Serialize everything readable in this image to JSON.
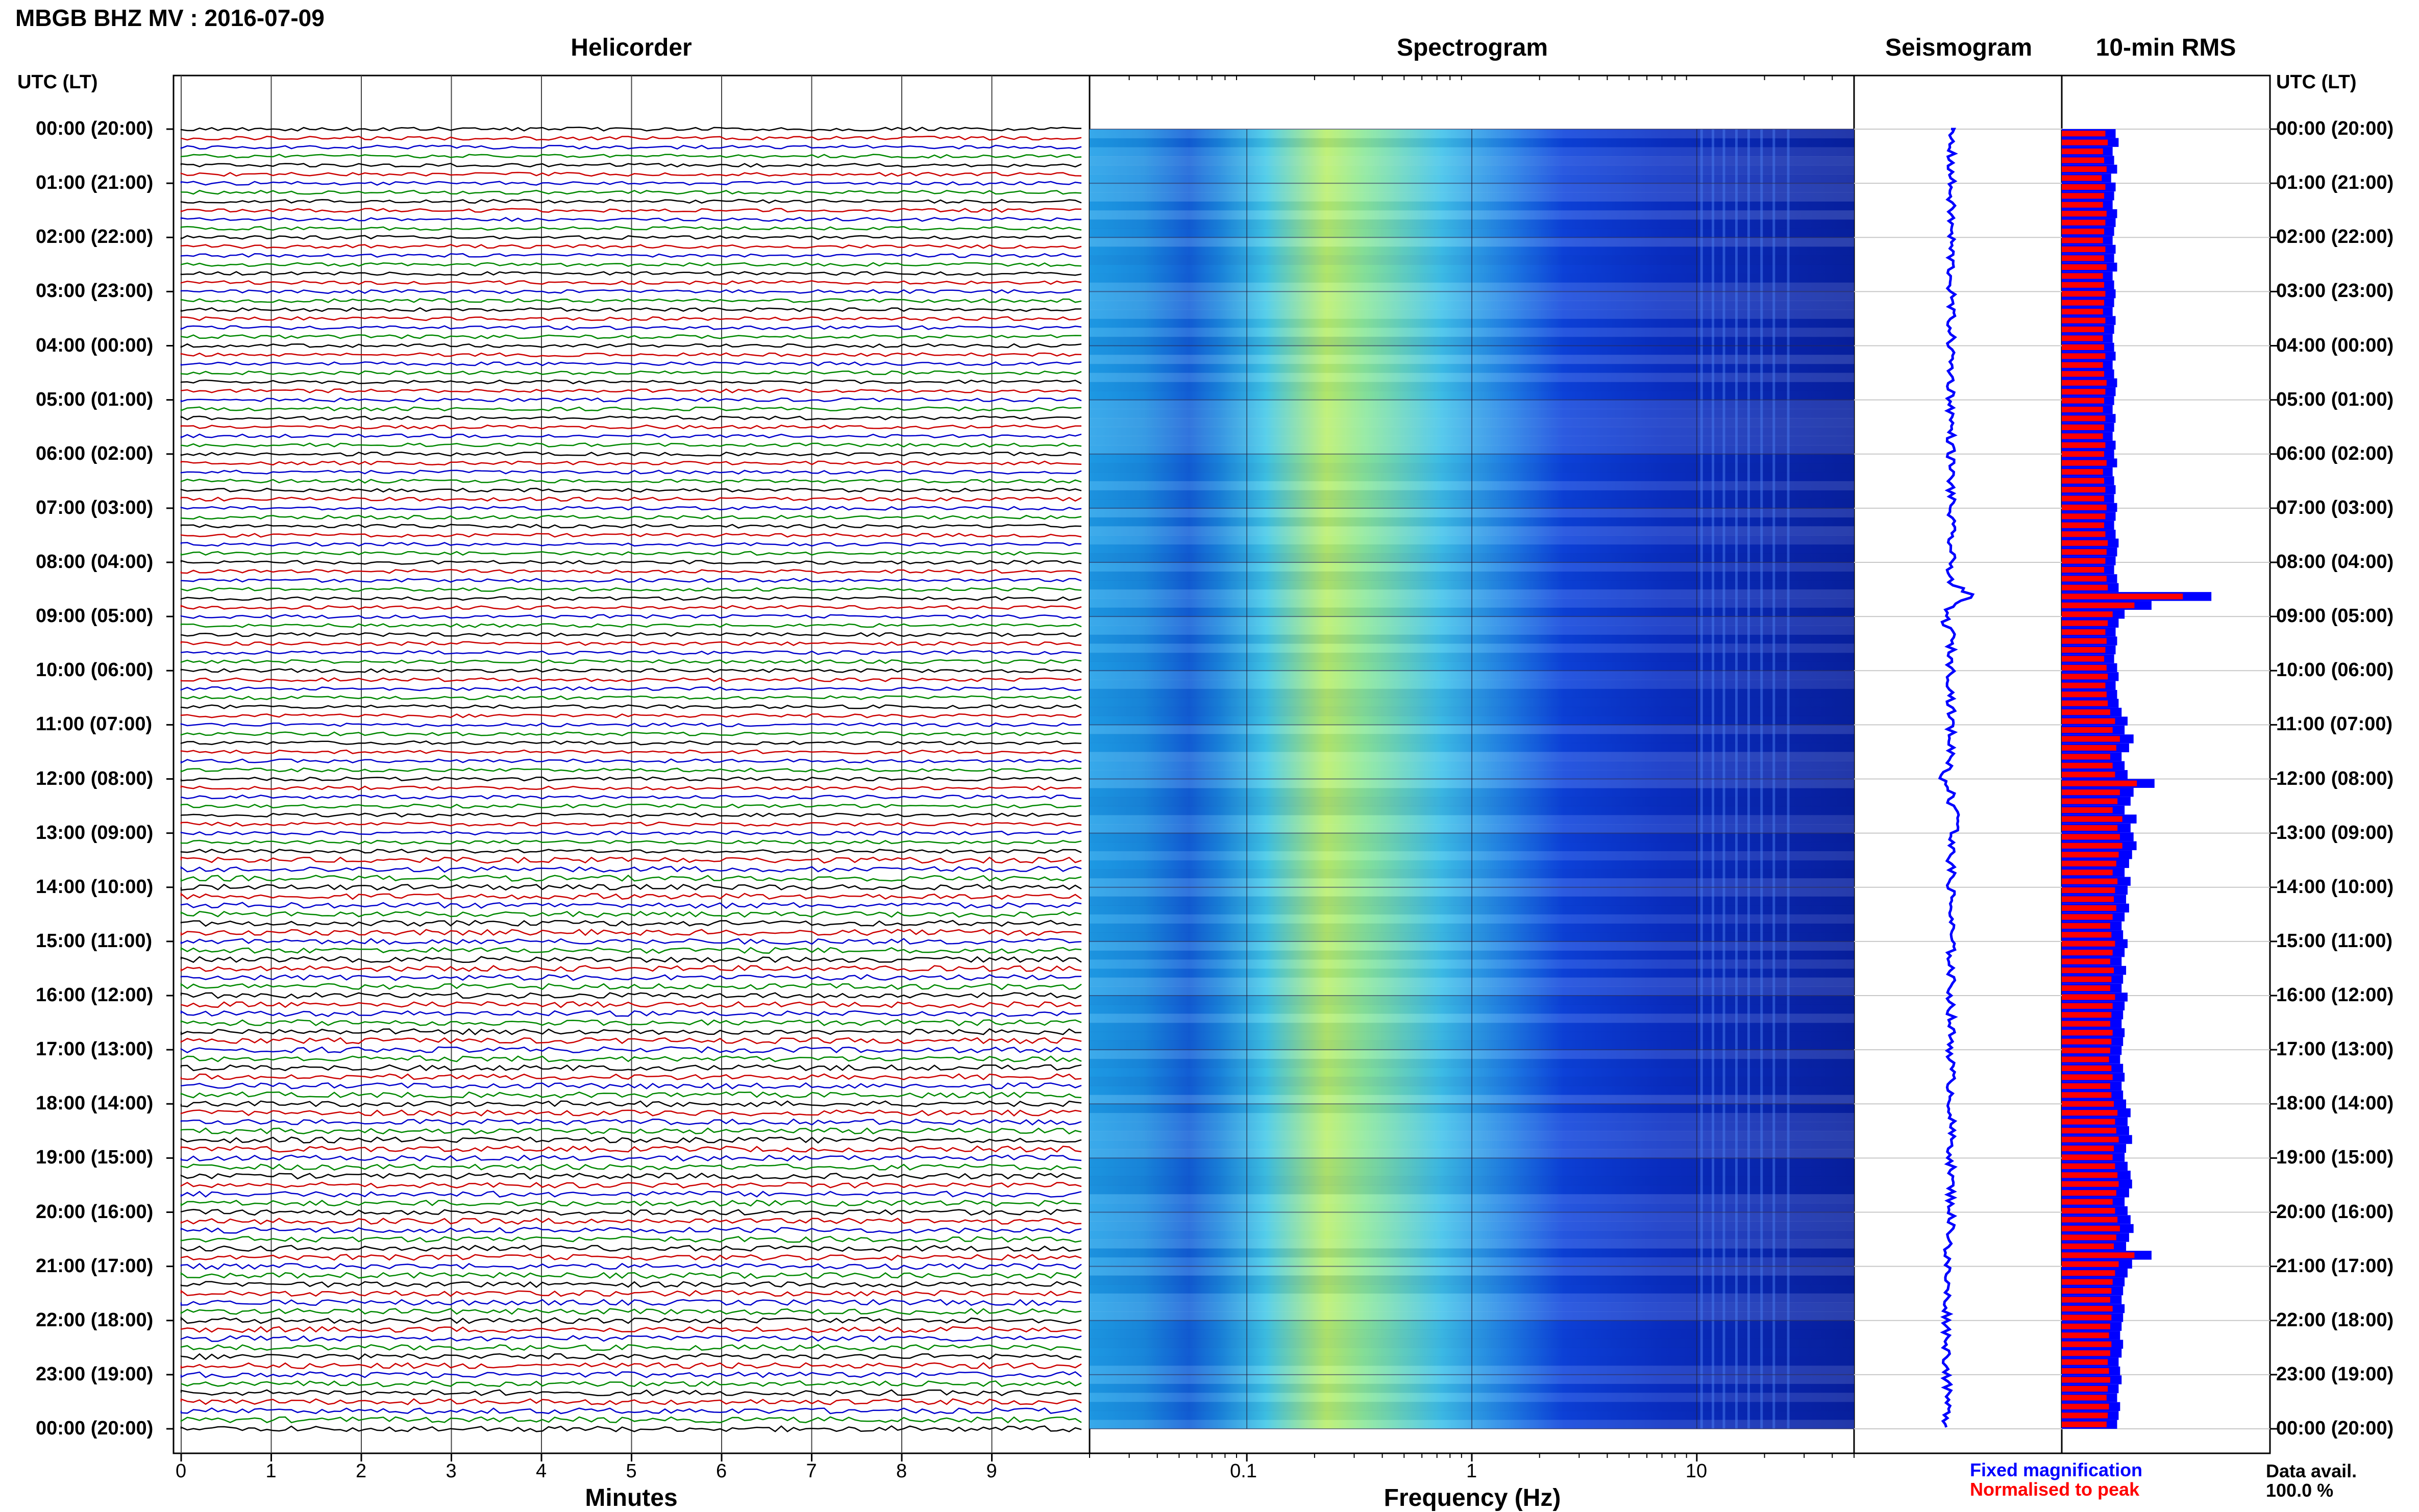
{
  "page_title": "MBGB BHZ MV : 2016-07-09",
  "panels": {
    "helicorder": "Helicorder",
    "spectrogram": "Spectrogram",
    "seismogram": "Seismogram",
    "rms": "10-min RMS"
  },
  "time_axis_header": "UTC (LT)",
  "time_labels": [
    "00:00 (20:00)",
    "01:00 (21:00)",
    "02:00 (22:00)",
    "03:00 (23:00)",
    "04:00 (00:00)",
    "05:00 (01:00)",
    "06:00 (02:00)",
    "07:00 (03:00)",
    "08:00 (04:00)",
    "09:00 (05:00)",
    "10:00 (06:00)",
    "11:00 (07:00)",
    "12:00 (08:00)",
    "13:00 (09:00)",
    "14:00 (10:00)",
    "15:00 (11:00)",
    "16:00 (12:00)",
    "17:00 (13:00)",
    "18:00 (14:00)",
    "19:00 (15:00)",
    "20:00 (16:00)",
    "21:00 (17:00)",
    "22:00 (18:00)",
    "23:00 (19:00)",
    "00:00 (20:00)"
  ],
  "legend": {
    "fixed": "Fixed magnification",
    "normalised": "Normalised to peak",
    "avail_label": "Data avail.",
    "avail_value": "100.0 %"
  },
  "colors": {
    "trace_cycle": [
      "#000000",
      "#cc0000",
      "#0000cc",
      "#008800"
    ],
    "rms_fixed": "#0000ff",
    "rms_normalised": "#ff0000",
    "seismogram": "#0000ff"
  },
  "chart_data": [
    {
      "type": "line",
      "title": "Helicorder",
      "xlabel": "Minutes",
      "xlim": [
        0,
        10
      ],
      "x_ticks": [
        0,
        1,
        2,
        3,
        4,
        5,
        6,
        7,
        8,
        9
      ],
      "rows_per_hour": 6,
      "hours": 24
    },
    {
      "type": "heatmap",
      "title": "Spectrogram",
      "xlabel": "Frequency (Hz)",
      "x_scale": "log",
      "xlim": [
        0.02,
        50
      ],
      "x_ticks": [
        0.1,
        1,
        10
      ],
      "x_tick_labels": [
        "0.1",
        "1",
        "10"
      ]
    },
    {
      "type": "line",
      "title": "Seismogram",
      "notable_events_utc": [
        "08:40",
        "12:00"
      ]
    },
    {
      "type": "bar",
      "title": "10-min RMS",
      "series": [
        {
          "name": "Fixed magnification"
        },
        {
          "name": "Normalised to peak"
        }
      ],
      "relative_values": [
        0.36,
        0.38,
        0.34,
        0.35,
        0.37,
        0.33,
        0.36,
        0.35,
        0.34,
        0.37,
        0.36,
        0.35,
        0.34,
        0.36,
        0.35,
        0.37,
        0.34,
        0.35,
        0.36,
        0.35,
        0.34,
        0.36,
        0.35,
        0.34,
        0.35,
        0.36,
        0.34,
        0.35,
        0.37,
        0.36,
        0.35,
        0.34,
        0.36,
        0.35,
        0.34,
        0.36,
        0.35,
        0.37,
        0.34,
        0.35,
        0.36,
        0.35,
        0.37,
        0.36,
        0.35,
        0.36,
        0.38,
        0.37,
        0.36,
        0.35,
        0.37,
        0.38,
        1.0,
        0.6,
        0.42,
        0.38,
        0.36,
        0.37,
        0.36,
        0.35,
        0.37,
        0.38,
        0.36,
        0.37,
        0.38,
        0.4,
        0.44,
        0.42,
        0.48,
        0.45,
        0.4,
        0.42,
        0.44,
        0.62,
        0.48,
        0.46,
        0.42,
        0.5,
        0.46,
        0.48,
        0.5,
        0.47,
        0.45,
        0.42,
        0.46,
        0.44,
        0.43,
        0.45,
        0.42,
        0.4,
        0.41,
        0.44,
        0.42,
        0.4,
        0.43,
        0.41,
        0.4,
        0.44,
        0.42,
        0.41,
        0.4,
        0.42,
        0.41,
        0.4,
        0.39,
        0.41,
        0.42,
        0.4,
        0.41,
        0.43,
        0.46,
        0.44,
        0.45,
        0.47,
        0.43,
        0.42,
        0.44,
        0.46,
        0.47,
        0.45,
        0.42,
        0.44,
        0.46,
        0.48,
        0.45,
        0.43,
        0.6,
        0.47,
        0.44,
        0.42,
        0.41,
        0.4,
        0.42,
        0.41,
        0.4,
        0.39,
        0.41,
        0.4,
        0.38,
        0.39,
        0.4,
        0.38,
        0.37,
        0.39,
        0.38,
        0.37
      ]
    }
  ]
}
